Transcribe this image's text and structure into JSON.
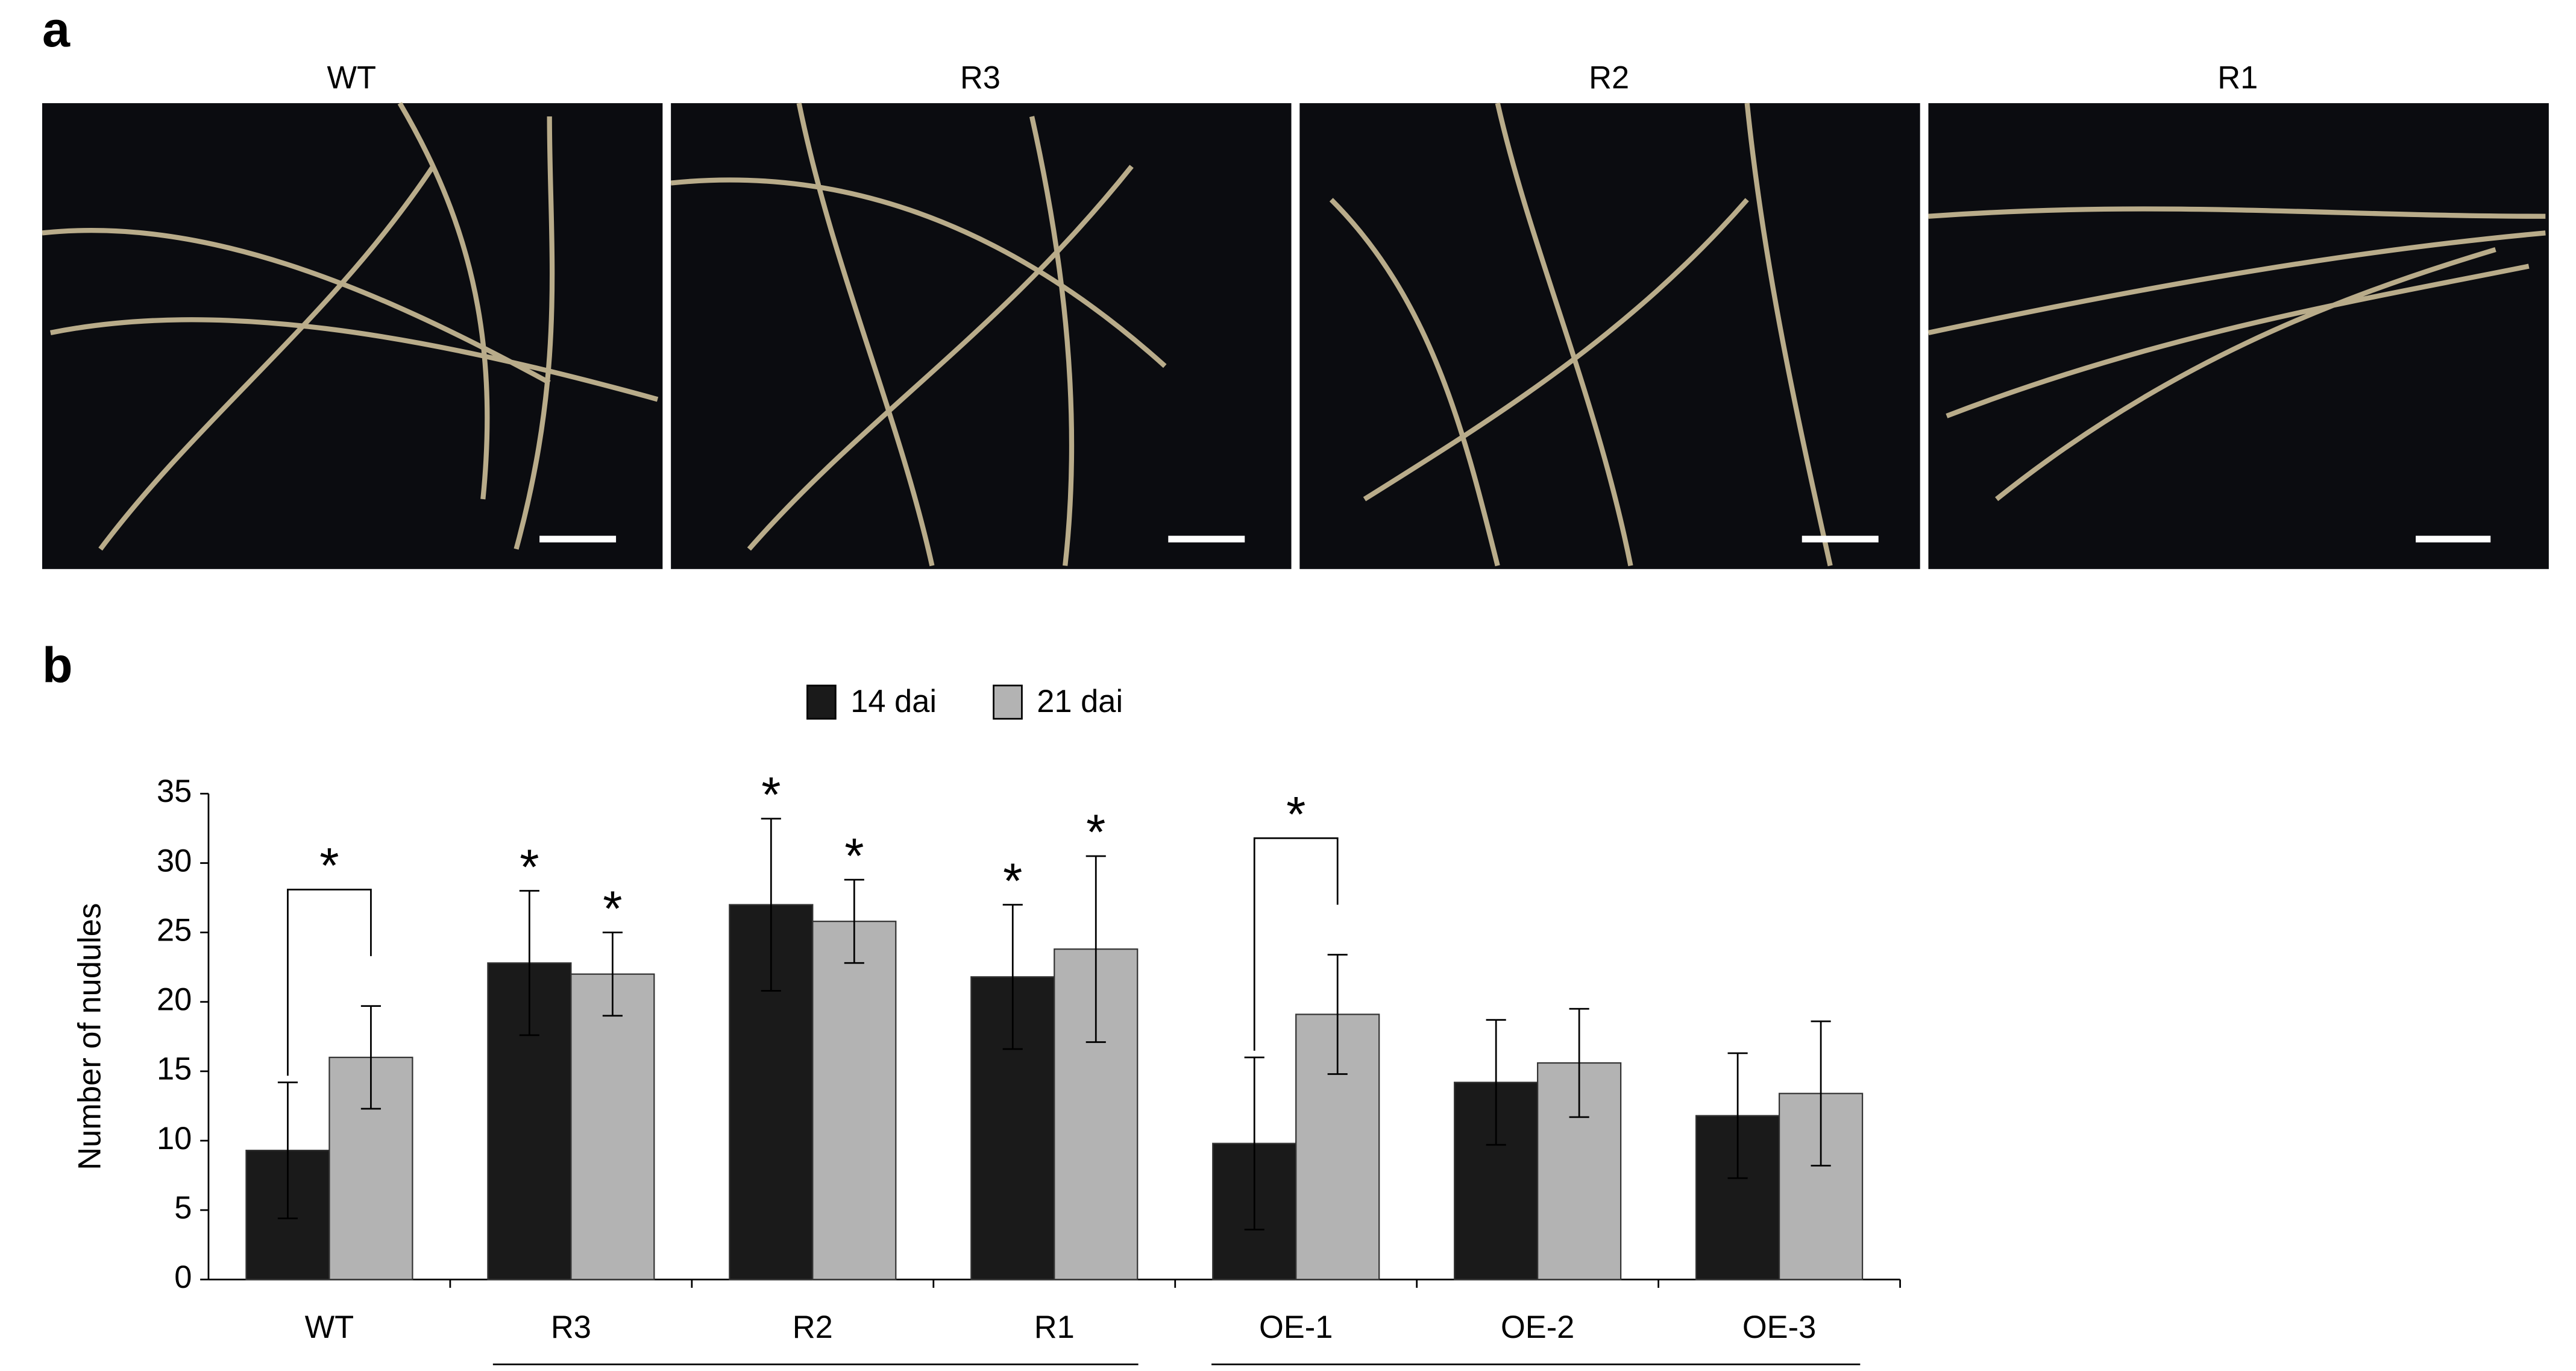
{
  "panel_a": {
    "label": "a",
    "titles": [
      "WT",
      "R3",
      "R2",
      "R1"
    ]
  },
  "chart_data": {
    "type": "bar",
    "panel_label": "b",
    "y_label": "Number of nudules",
    "categories": [
      "WT",
      "R3",
      "R2",
      "R1",
      "OE-1",
      "OE-2",
      "OE-3"
    ],
    "series": [
      {
        "name": "14 dai",
        "color": "#1a1a1a",
        "values": [
          9.3,
          22.8,
          27,
          21.8,
          9.8,
          14.2,
          11.8
        ],
        "errors": [
          4.9,
          5.2,
          6.2,
          5.2,
          6.2,
          4.5,
          4.5
        ],
        "significance": [
          null,
          "*",
          "*",
          "*",
          null,
          null,
          null
        ]
      },
      {
        "name": "21 dai",
        "color": "#b3b3b3",
        "values": [
          16,
          22,
          25.8,
          23.8,
          19.1,
          15.6,
          13.4
        ],
        "errors": [
          3.7,
          3,
          3,
          6.7,
          4.3,
          3.9,
          5.2
        ],
        "significance": [
          null,
          "*",
          "*",
          "*",
          null,
          null,
          null
        ]
      }
    ],
    "brackets": [
      {
        "category": "WT",
        "text": "*"
      },
      {
        "category": "OE-1",
        "text": "*"
      }
    ],
    "ylim": [
      0,
      35
    ],
    "yticks": [
      0,
      5,
      10,
      15,
      20,
      25,
      30,
      35
    ],
    "grid": false
  }
}
